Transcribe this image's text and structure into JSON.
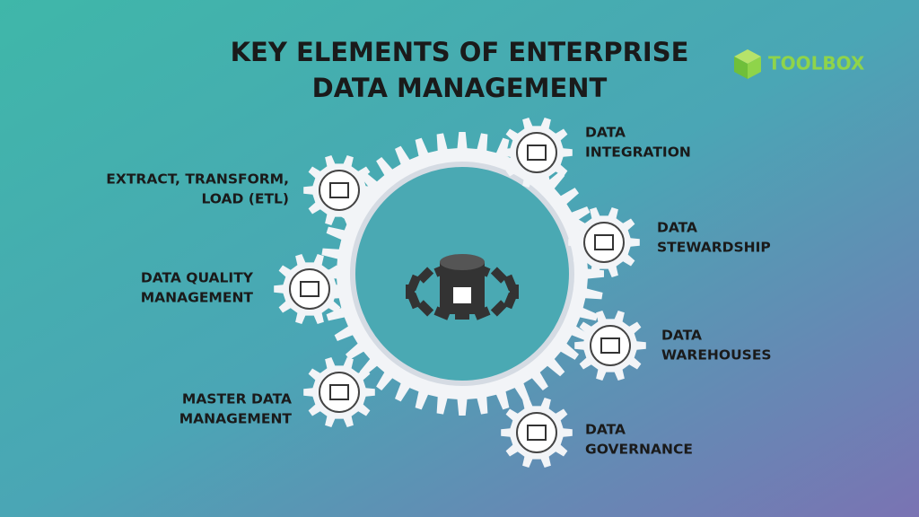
{
  "header": {
    "title_lines": [
      "KEY ELEMENTS OF ENTERPRISE",
      "DATA MANAGEMENT"
    ],
    "logo": "TOOLBOX"
  },
  "nodes": [
    {
      "lines": [
        "EXTRACT, TRANSFORM,",
        "LOAD (ETL)"
      ]
    },
    {
      "lines": [
        "DATA QUALITY",
        "MANAGEMENT"
      ]
    },
    {
      "lines": [
        "MASTER DATA",
        "MANAGEMENT"
      ]
    },
    {
      "lines": [
        "DATA",
        "INTEGRATION"
      ]
    },
    {
      "lines": [
        "DATA",
        "STEWARDSHIP"
      ]
    },
    {
      "lines": [
        "DATA",
        "WAREHOUSES"
      ]
    },
    {
      "lines": [
        "DATA",
        "GOVERNANCE"
      ]
    }
  ]
}
